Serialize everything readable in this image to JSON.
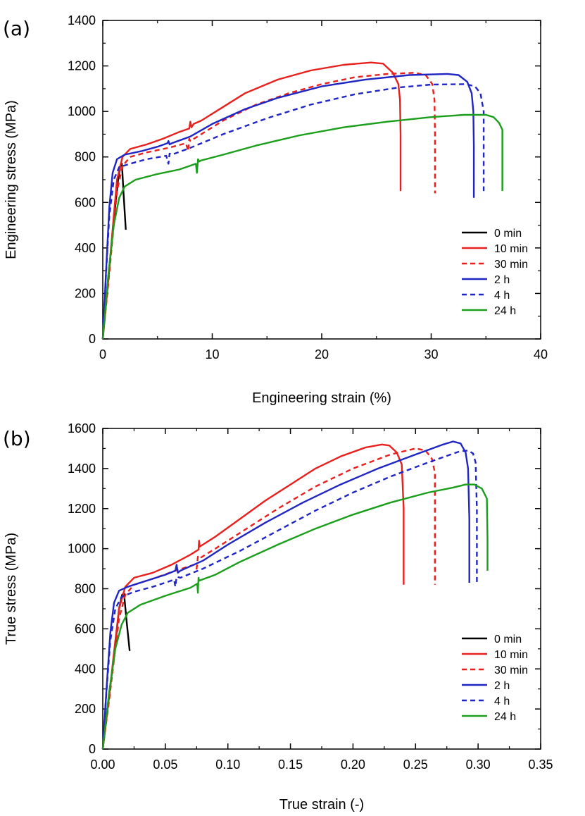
{
  "chart_data": [
    {
      "type": "line",
      "panel_label": "(a)",
      "xlabel": "Engineering strain (%)",
      "ylabel": "Engineering stress (MPa)",
      "xlim": [
        0,
        40
      ],
      "ylim": [
        0,
        1400
      ],
      "xticks": [
        0,
        10,
        20,
        30,
        40
      ],
      "xtick_labels": [
        "0",
        "10",
        "20",
        "30",
        "40"
      ],
      "yticks": [
        0,
        200,
        400,
        600,
        800,
        1000,
        1200,
        1400
      ],
      "ytick_labels": [
        "0",
        "200",
        "400",
        "600",
        "800",
        "1000",
        "1200",
        "1400"
      ],
      "legend_position": "bottom-right",
      "series": [
        {
          "name": "0 min",
          "color": "#000000",
          "dash": "solid",
          "x": [
            0,
            0.5,
            1.0,
            1.4,
            1.6,
            1.75,
            1.9,
            2.1
          ],
          "y": [
            0,
            260,
            520,
            700,
            760,
            770,
            640,
            480
          ]
        },
        {
          "name": "10 min",
          "color": "#e8201d",
          "dash": "solid",
          "x": [
            0,
            0.5,
            1.0,
            1.3,
            1.8,
            2.5,
            4,
            5.5,
            7,
            7.9,
            8.0,
            8.1,
            8.3,
            9,
            11,
            13,
            16,
            19,
            22,
            24.5,
            25.6,
            26.5,
            27.0,
            27.15,
            27.2,
            27.2
          ],
          "y": [
            0,
            260,
            540,
            700,
            800,
            835,
            855,
            880,
            910,
            925,
            955,
            930,
            945,
            960,
            1020,
            1080,
            1140,
            1180,
            1205,
            1215,
            1210,
            1170,
            1120,
            1050,
            900,
            650
          ]
        },
        {
          "name": "30 min",
          "color": "#e8201d",
          "dash": "dashed",
          "x": [
            0,
            0.5,
            1.0,
            1.3,
            1.8,
            2.5,
            4,
            6,
            7.6,
            7.8,
            7.9,
            8.0,
            9,
            11,
            14,
            17,
            20,
            23,
            26,
            28.5,
            29.5,
            30.1,
            30.3,
            30.35,
            30.35
          ],
          "y": [
            0,
            240,
            500,
            650,
            760,
            800,
            820,
            840,
            860,
            825,
            880,
            870,
            900,
            960,
            1030,
            1080,
            1120,
            1150,
            1165,
            1170,
            1160,
            1120,
            1050,
            900,
            640
          ]
        },
        {
          "name": "2 h",
          "color": "#1f26c4",
          "dash": "solid",
          "x": [
            0,
            0.3,
            0.6,
            0.9,
            1.3,
            2,
            3.5,
            5,
            5.9,
            6.0,
            6.1,
            6.3,
            8,
            10,
            13,
            16,
            20,
            24,
            28,
            31.5,
            32.5,
            33.3,
            33.7,
            33.85,
            33.9,
            33.9
          ],
          "y": [
            0,
            300,
            580,
            730,
            790,
            810,
            825,
            845,
            860,
            870,
            855,
            860,
            890,
            945,
            1010,
            1060,
            1110,
            1140,
            1160,
            1165,
            1160,
            1130,
            1080,
            1000,
            850,
            620
          ]
        },
        {
          "name": "4 h",
          "color": "#1f26c4",
          "dash": "dashed",
          "x": [
            0,
            0.3,
            0.6,
            1.0,
            1.5,
            2.5,
            4,
            5.8,
            6.0,
            6.1,
            6.3,
            8,
            11,
            15,
            19,
            23,
            27,
            30,
            33.2,
            34.0,
            34.5,
            34.8,
            34.8,
            34.8
          ],
          "y": [
            0,
            290,
            540,
            700,
            755,
            770,
            790,
            805,
            770,
            815,
            810,
            840,
            900,
            970,
            1030,
            1075,
            1105,
            1118,
            1120,
            1110,
            1080,
            1000,
            880,
            650
          ]
        },
        {
          "name": "24 h",
          "color": "#1b9e1b",
          "dash": "solid",
          "x": [
            0,
            0.5,
            1.0,
            1.5,
            2,
            3,
            5,
            7,
            8.5,
            8.6,
            8.7,
            8.8,
            9,
            11,
            14,
            18,
            22,
            26,
            30,
            33,
            35,
            35.7,
            36.2,
            36.5,
            36.5,
            36.5
          ],
          "y": [
            0,
            280,
            500,
            620,
            670,
            700,
            725,
            745,
            770,
            730,
            790,
            780,
            785,
            810,
            850,
            895,
            930,
            955,
            975,
            985,
            985,
            975,
            950,
            920,
            800,
            650
          ]
        }
      ]
    },
    {
      "type": "line",
      "panel_label": "(b)",
      "xlabel": "True strain (-)",
      "ylabel": "True stress (MPa)",
      "xlim": [
        0,
        0.35
      ],
      "ylim": [
        0,
        1600
      ],
      "xticks": [
        0,
        0.05,
        0.1,
        0.15,
        0.2,
        0.25,
        0.3,
        0.35
      ],
      "xtick_labels": [
        "0.00",
        "0.05",
        "0.10",
        "0.15",
        "0.20",
        "0.25",
        "0.30",
        "0.35"
      ],
      "yticks": [
        0,
        200,
        400,
        600,
        800,
        1000,
        1200,
        1400,
        1600
      ],
      "ytick_labels": [
        "0",
        "200",
        "400",
        "600",
        "800",
        "1000",
        "1200",
        "1400",
        "1600"
      ],
      "legend_position": "bottom-right",
      "series": [
        {
          "name": "0 min",
          "color": "#000000",
          "dash": "solid",
          "x": [
            0,
            0.005,
            0.01,
            0.013,
            0.0155,
            0.017,
            0.019,
            0.0215
          ],
          "y": [
            0,
            260,
            520,
            700,
            770,
            775,
            640,
            490
          ]
        },
        {
          "name": "10 min",
          "color": "#e8201d",
          "dash": "solid",
          "x": [
            0,
            0.005,
            0.01,
            0.013,
            0.018,
            0.025,
            0.04,
            0.055,
            0.07,
            0.0765,
            0.077,
            0.0775,
            0.08,
            0.09,
            0.11,
            0.13,
            0.15,
            0.17,
            0.19,
            0.21,
            0.223,
            0.229,
            0.235,
            0.239,
            0.2405,
            0.2405
          ],
          "y": [
            0,
            260,
            540,
            700,
            810,
            855,
            880,
            920,
            970,
            995,
            1040,
            1010,
            1020,
            1060,
            1150,
            1240,
            1320,
            1400,
            1460,
            1505,
            1520,
            1515,
            1480,
            1420,
            1200,
            820
          ]
        },
        {
          "name": "30 min",
          "color": "#e8201d",
          "dash": "dashed",
          "x": [
            0,
            0.005,
            0.01,
            0.013,
            0.018,
            0.025,
            0.04,
            0.058,
            0.073,
            0.075,
            0.076,
            0.077,
            0.09,
            0.11,
            0.14,
            0.17,
            0.2,
            0.23,
            0.25,
            0.258,
            0.263,
            0.2655,
            0.2655,
            0.2655
          ],
          "y": [
            0,
            240,
            500,
            650,
            770,
            820,
            850,
            890,
            920,
            900,
            960,
            950,
            1000,
            1080,
            1200,
            1310,
            1400,
            1470,
            1500,
            1490,
            1450,
            1380,
            1150,
            820
          ]
        },
        {
          "name": "2 h",
          "color": "#1f26c4",
          "dash": "solid",
          "x": [
            0,
            0.003,
            0.006,
            0.009,
            0.013,
            0.02,
            0.035,
            0.05,
            0.058,
            0.059,
            0.06,
            0.062,
            0.08,
            0.1,
            0.13,
            0.16,
            0.19,
            0.22,
            0.25,
            0.272,
            0.28,
            0.286,
            0.29,
            0.292,
            0.293,
            0.293
          ],
          "y": [
            0,
            300,
            580,
            730,
            790,
            810,
            840,
            870,
            890,
            920,
            880,
            890,
            940,
            1020,
            1130,
            1230,
            1320,
            1400,
            1470,
            1520,
            1535,
            1525,
            1480,
            1400,
            1150,
            830
          ]
        },
        {
          "name": "4 h",
          "color": "#1f26c4",
          "dash": "dashed",
          "x": [
            0,
            0.003,
            0.006,
            0.01,
            0.015,
            0.025,
            0.04,
            0.057,
            0.058,
            0.059,
            0.062,
            0.08,
            0.11,
            0.14,
            0.17,
            0.2,
            0.23,
            0.26,
            0.285,
            0.292,
            0.296,
            0.298,
            0.299,
            0.299
          ],
          "y": [
            0,
            290,
            540,
            700,
            760,
            785,
            810,
            845,
            810,
            860,
            855,
            900,
            990,
            1090,
            1190,
            1280,
            1360,
            1430,
            1485,
            1490,
            1475,
            1430,
            1200,
            820
          ]
        },
        {
          "name": "24 h",
          "color": "#1b9e1b",
          "dash": "solid",
          "x": [
            0,
            0.005,
            0.01,
            0.015,
            0.02,
            0.03,
            0.05,
            0.07,
            0.0755,
            0.076,
            0.0765,
            0.077,
            0.079,
            0.09,
            0.11,
            0.14,
            0.17,
            0.2,
            0.23,
            0.26,
            0.28,
            0.29,
            0.297,
            0.303,
            0.307,
            0.3075,
            0.3075
          ],
          "y": [
            0,
            280,
            500,
            620,
            680,
            720,
            765,
            805,
            825,
            780,
            855,
            840,
            845,
            870,
            935,
            1020,
            1100,
            1170,
            1230,
            1280,
            1305,
            1320,
            1320,
            1300,
            1250,
            1050,
            890
          ]
        }
      ]
    }
  ]
}
